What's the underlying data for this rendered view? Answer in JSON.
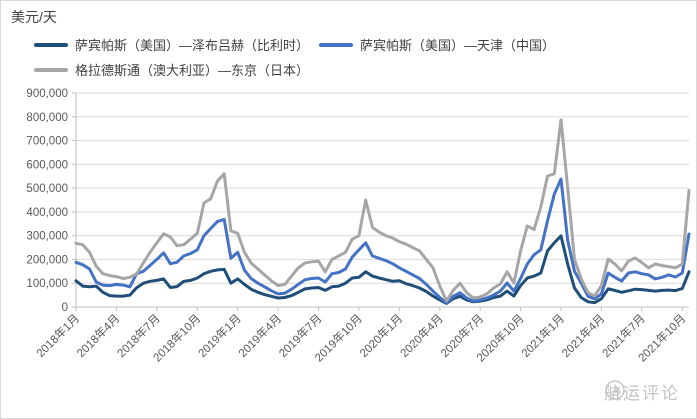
{
  "header": {
    "unit_label": "美元/天"
  },
  "legend": {
    "items": [
      {
        "label": "萨宾帕斯（美国）—泽布吕赫（比利时）",
        "color": "#1F4E79"
      },
      {
        "label": "萨宾帕斯（美国）—天津（中国）",
        "color": "#4472C4"
      },
      {
        "label": "格拉德斯通（澳大利亚）—东京（日本）",
        "color": "#A6A6A6"
      }
    ]
  },
  "watermark": {
    "text": "航运评论",
    "icon": "ship-badge-icon",
    "color": "#b9b9b9"
  },
  "chart_data": {
    "type": "line",
    "title": "",
    "ylabel": "美元/天",
    "xlabel": "",
    "grid": true,
    "legend_position": "top-left",
    "ylim": [
      0,
      900000
    ],
    "y_tick_step": 100000,
    "y_tick_labels": [
      "0",
      "100,000",
      "200,000",
      "300,000",
      "400,000",
      "500,000",
      "600,000",
      "700,000",
      "800,000",
      "900,000"
    ],
    "x_tick_labels": [
      "2018年1月",
      "2018年4月",
      "2018年7月",
      "2018年10月",
      "2019年1月",
      "2019年4月",
      "2019年7月",
      "2019年10月",
      "2020年1月",
      "2020年4月",
      "2020年7月",
      "2020年10月",
      "2021年1月",
      "2021年4月",
      "2021年7月",
      "2021年10月"
    ],
    "frequency": "semi-monthly",
    "x_range": [
      "2018年1月",
      "2021年10月"
    ],
    "points_per_tick": 6,
    "axis_color": "#BFBFBF",
    "grid_color": "#D9D9D9",
    "tick_label_color": "#595959",
    "series": [
      {
        "name": "萨宾帕斯（美国）—泽布吕赫（比利时）",
        "color": "#1F4E79",
        "values": [
          110000,
          88000,
          85000,
          88000,
          62000,
          48000,
          46000,
          46000,
          50000,
          81000,
          100000,
          108000,
          112000,
          118000,
          82000,
          86000,
          108000,
          112000,
          122000,
          140000,
          150000,
          156000,
          158000,
          100000,
          118000,
          95000,
          75000,
          62000,
          52000,
          45000,
          38000,
          40000,
          48000,
          62000,
          76000,
          80000,
          82000,
          70000,
          85000,
          88000,
          100000,
          122000,
          125000,
          148000,
          130000,
          122000,
          115000,
          108000,
          110000,
          98000,
          90000,
          80000,
          65000,
          46000,
          30000,
          15000,
          35000,
          45000,
          30000,
          22000,
          25000,
          30000,
          40000,
          46000,
          67000,
          46000,
          90000,
          122000,
          130000,
          143000,
          236000,
          270000,
          299000,
          180000,
          80000,
          40000,
          22000,
          18000,
          35000,
          76000,
          70000,
          62000,
          68000,
          75000,
          73000,
          70000,
          67000,
          70000,
          71000,
          69000,
          78000,
          148000
        ]
      },
      {
        "name": "萨宾帕斯（美国）—天津（中国）",
        "color": "#4472C4",
        "values": [
          188000,
          178000,
          160000,
          105000,
          92000,
          90000,
          95000,
          92000,
          85000,
          140000,
          150000,
          175000,
          200000,
          228000,
          182000,
          188000,
          215000,
          225000,
          240000,
          300000,
          330000,
          360000,
          368000,
          205000,
          230000,
          155000,
          120000,
          100000,
          85000,
          68000,
          55000,
          58000,
          75000,
          95000,
          115000,
          120000,
          122000,
          105000,
          140000,
          145000,
          160000,
          210000,
          240000,
          270000,
          215000,
          205000,
          195000,
          182000,
          165000,
          150000,
          135000,
          120000,
          95000,
          67000,
          40000,
          17000,
          45000,
          60000,
          38000,
          25000,
          30000,
          38000,
          50000,
          67000,
          101000,
          67000,
          120000,
          181000,
          220000,
          240000,
          362000,
          475000,
          538000,
          280000,
          150000,
          100000,
          45000,
          34000,
          55000,
          143000,
          125000,
          109000,
          143000,
          148000,
          140000,
          135000,
          118000,
          125000,
          135000,
          126000,
          143000,
          307000
        ]
      },
      {
        "name": "格拉德斯通（澳大利亚）—东京（日本）",
        "color": "#A6A6A6",
        "values": [
          268000,
          262000,
          230000,
          172000,
          140000,
          132000,
          128000,
          120000,
          125000,
          139000,
          186000,
          230000,
          270000,
          308000,
          295000,
          258000,
          262000,
          285000,
          310000,
          438000,
          455000,
          530000,
          560000,
          320000,
          310000,
          230000,
          185000,
          160000,
          135000,
          110000,
          90000,
          95000,
          130000,
          165000,
          185000,
          190000,
          192000,
          148000,
          200000,
          215000,
          230000,
          285000,
          300000,
          450000,
          335000,
          315000,
          300000,
          290000,
          275000,
          264000,
          250000,
          236000,
          200000,
          165000,
          88000,
          26000,
          70000,
          100000,
          60000,
          38000,
          42000,
          55000,
          80000,
          97000,
          148000,
          101000,
          236000,
          341000,
          326000,
          420000,
          551000,
          560000,
          787000,
          500000,
          200000,
          118000,
          60000,
          46000,
          90000,
          202000,
          181000,
          152000,
          193000,
          206000,
          187000,
          165000,
          181000,
          174000,
          170000,
          165000,
          181000,
          490000
        ]
      }
    ]
  }
}
